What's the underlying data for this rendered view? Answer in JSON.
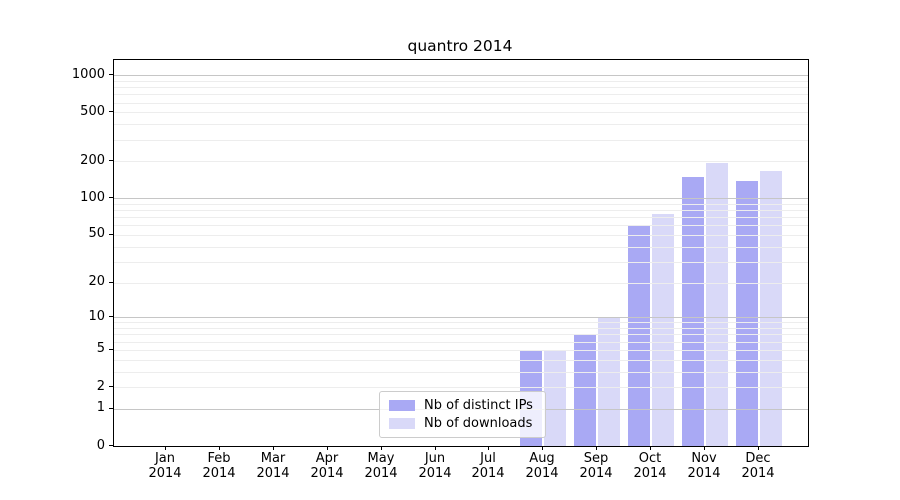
{
  "chart_data": {
    "type": "bar",
    "title": "quantro 2014",
    "categories": [
      "Jan",
      "Feb",
      "Mar",
      "Apr",
      "May",
      "Jun",
      "Jul",
      "Aug",
      "Sep",
      "Oct",
      "Nov",
      "Dec"
    ],
    "year": "2014",
    "series": [
      {
        "name": "Nb of distinct IPs",
        "color": "#a9a9f4",
        "values": [
          0,
          0,
          0,
          0,
          0,
          0,
          0,
          5,
          7,
          60,
          150,
          138
        ]
      },
      {
        "name": "Nb of downloads",
        "color": "#d9d9f8",
        "values": [
          0,
          0,
          0,
          0,
          0,
          0,
          0,
          5,
          10,
          75,
          195,
          167
        ]
      }
    ],
    "yscale": "log(x+1)",
    "yticks": [
      0,
      1,
      2,
      5,
      10,
      20,
      50,
      100,
      200,
      500,
      1000
    ],
    "ylim": [
      0,
      1315
    ],
    "grid": {
      "major_values": [
        1,
        10,
        100,
        1000
      ],
      "major_color": "#c6c6c6",
      "minor_color": "#ededed"
    },
    "legend_position": "bottom-center",
    "axis_color": "#000000",
    "background_color": "#ffffff"
  }
}
